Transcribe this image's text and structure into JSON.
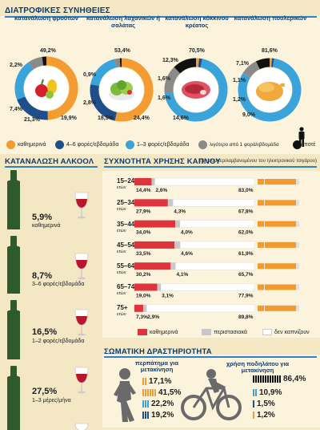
{
  "headers": {
    "diet": "ΔΙΑΤΡΟΦΙΚΕΣ ΣΥΝΗΘΕΙΕΣ",
    "alcohol": "ΚΑΤΑΝΑΛΩΣΗ ΑΛΚΟΟΛ",
    "smoking": "ΣΥΧΝΟΤΗΤΑ ΧΡΗΣΗΣ ΚΑΠΝΟΥ",
    "smoking_note": "(μη συμπεριλαμβανομένου του ηλεκτρονικού τσιγάρου)",
    "physical": "ΣΩΜΑΤΙΚΗ ΔΡΑΣΤΗΡΙΟΤΗΤΑ"
  },
  "colors": {
    "daily": "#f39c32",
    "4to6": "#1d4f8c",
    "1to3": "#3aa3d9",
    "less": "#8a8a8a",
    "never": "#111111",
    "smoke_daily": "#e0343c",
    "smoke_occasional": "#c8c8c8",
    "smoke_no": "#ffffff",
    "bg": "#f4e7c4",
    "panel": "#fbf3dc",
    "header": "#0d3b6e"
  },
  "diet_legend": [
    "καθημερινά",
    "4–6 φορές/εβδομάδα",
    "1–3 φορές/εβδομάδα",
    "λιγότερο από 1 φορά/εβδομάδα",
    "ποτέ"
  ],
  "diet_labels": [
    {
      "title": "κατανάλωση φρούτων",
      "icon": "fruit-icon",
      "labels": [
        "49,2%",
        "19,9%",
        "21,3%",
        "7,4%",
        "2,2%"
      ]
    },
    {
      "title": "κατανάλωση λαχανικών ή σαλάτας",
      "icon": "salad-icon",
      "labels": [
        "53,4%",
        "24,4%",
        "18,5%",
        "2,8%",
        "0,9%"
      ]
    },
    {
      "title": "κατανάλωση κόκκινου κρέατος",
      "icon": "steak-icon",
      "labels": [
        "70,5%",
        "14,6%",
        "1,6%",
        "1,6%",
        "12,3%"
      ]
    },
    {
      "title": "κατανάλωση πουλερικών",
      "icon": "chicken-icon",
      "labels": [
        "81,6%",
        "9,0%",
        "1,2%",
        "1,1%",
        "7,1%"
      ]
    }
  ],
  "alcohol": [
    {
      "value": "5,9%",
      "label": "καθημερινά"
    },
    {
      "value": "8,7%",
      "label": "3–6 φορές/εβδομάδα"
    },
    {
      "value": "16,5%",
      "label": "1–2 φορές/εβδομάδα"
    },
    {
      "value": "27,5%",
      "label": "1–3 μέρες/μήνα"
    }
  ],
  "smoking_legend": [
    "καθημερινά",
    "περιστασιακά",
    "δεν καπνίζουν"
  ],
  "smoking_rows": [
    {
      "age": "15–24",
      "unit": "ετών",
      "daily": "14,4%",
      "occ": "2,6%",
      "no": "83,0%"
    },
    {
      "age": "25–34",
      "unit": "ετών",
      "daily": "27,9%",
      "occ": "4,3%",
      "no": "67,8%"
    },
    {
      "age": "35–44",
      "unit": "ετών",
      "daily": "34,0%",
      "occ": "4,0%",
      "no": "62,0%"
    },
    {
      "age": "45–54",
      "unit": "ετών",
      "daily": "33,5%",
      "occ": "4,6%",
      "no": "61,9%"
    },
    {
      "age": "55–64",
      "unit": "ετών",
      "daily": "30,2%",
      "occ": "4,1%",
      "no": "65,7%"
    },
    {
      "age": "65–74",
      "unit": "ετών",
      "daily": "19,0%",
      "occ": "3,1%",
      "no": "77,9%"
    },
    {
      "age": "75+",
      "unit": "ετών",
      "daily": "7,3%",
      "occ": "2,9%",
      "no": "89,8%"
    }
  ],
  "physical": {
    "walk_title": "περπάτημα για μετακίνηση",
    "bike_title": "χρήση ποδηλάτου για μετακίνηση",
    "walk_values": [
      "17,1%",
      "41,5%",
      "22,2%",
      "19,2%"
    ],
    "bike_values": [
      "86,4%",
      "10,9%",
      "1,5%",
      "1,2%"
    ]
  },
  "chart_data": [
    {
      "type": "pie",
      "title": "κατανάλωση φρούτων",
      "categories": [
        "καθημερινά",
        "4–6 φορές/εβδομάδα",
        "1–3 φορές/εβδομάδα",
        "λιγότερο από 1 φορά/εβδομάδα",
        "ποτέ"
      ],
      "values": [
        49.2,
        19.9,
        21.3,
        7.4,
        2.2
      ]
    },
    {
      "type": "pie",
      "title": "κατανάλωση λαχανικών ή σαλάτας",
      "categories": [
        "καθημερινά",
        "4–6 φορές/εβδομάδα",
        "1–3 φορές/εβδομάδα",
        "λιγότερο από 1 φορά/εβδομάδα",
        "ποτέ"
      ],
      "values": [
        53.4,
        24.4,
        18.5,
        2.8,
        0.9
      ]
    },
    {
      "type": "pie",
      "title": "κατανάλωση κόκκινου κρέατος",
      "categories": [
        "καθημερινά",
        "4–6 φορές/εβδομάδα",
        "1–3 φορές/εβδομάδα",
        "λιγότερο από 1 φορά/εβδομάδα",
        "ποτέ"
      ],
      "values": [
        1.6,
        1.6,
        70.5,
        14.6,
        12.3
      ]
    },
    {
      "type": "pie",
      "title": "κατανάλωση πουλερικών",
      "categories": [
        "καθημερινά",
        "4–6 φορές/εβδομάδα",
        "1–3 φορές/εβδομάδα",
        "λιγότερο από 1 φορά/εβδομάδα",
        "ποτέ"
      ],
      "values": [
        1.2,
        1.1,
        81.6,
        9.0,
        7.1
      ]
    },
    {
      "type": "bar",
      "stacked": true,
      "title": "ΣΥΧΝΟΤΗΤΑ ΧΡΗΣΗΣ ΚΑΠΝΟΥ",
      "categories": [
        "15–24",
        "25–34",
        "35–44",
        "45–54",
        "55–64",
        "65–74",
        "75+"
      ],
      "series": [
        {
          "name": "καθημερινά",
          "values": [
            14.4,
            27.9,
            34.0,
            33.5,
            30.2,
            19.0,
            7.3
          ]
        },
        {
          "name": "περιστασιακά",
          "values": [
            2.6,
            4.3,
            4.0,
            4.6,
            4.1,
            3.1,
            2.9
          ]
        },
        {
          "name": "δεν καπνίζουν",
          "values": [
            83.0,
            67.8,
            62.0,
            61.9,
            65.7,
            77.9,
            89.8
          ]
        }
      ]
    }
  ]
}
